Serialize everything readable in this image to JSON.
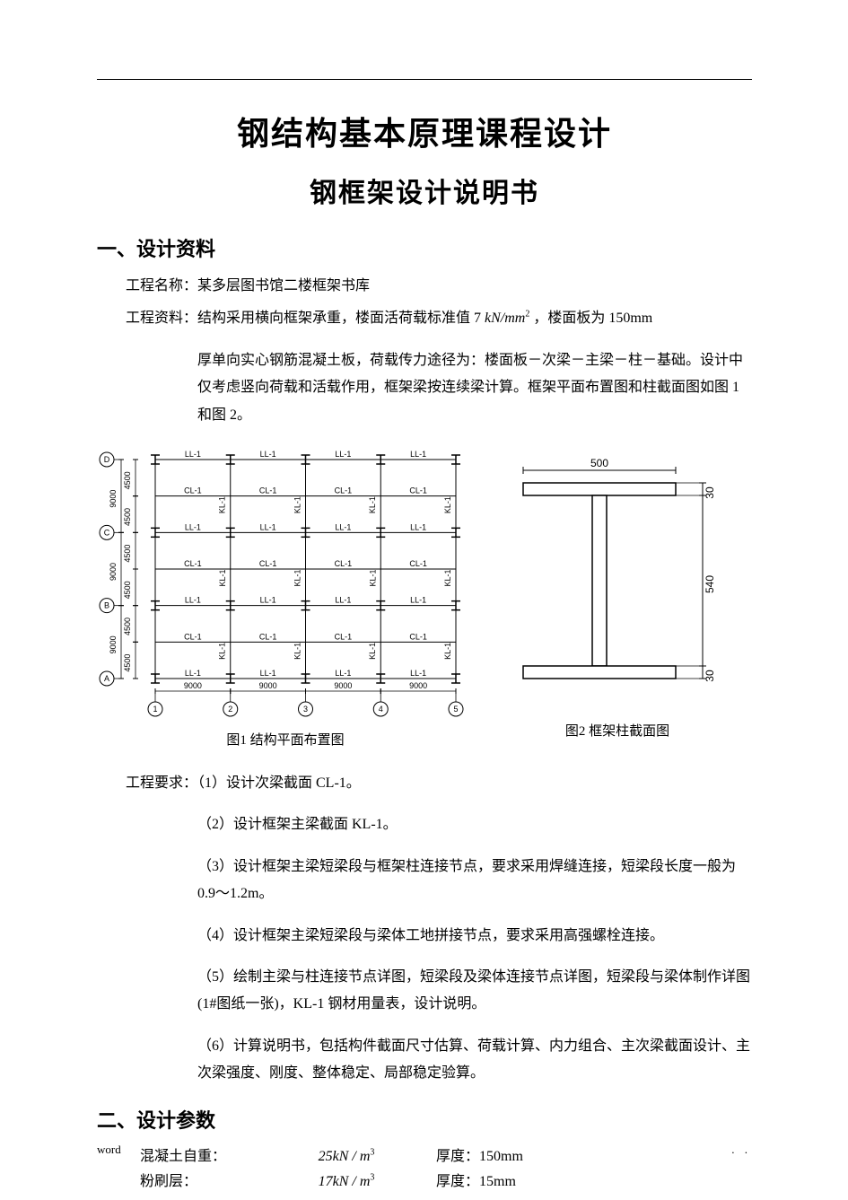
{
  "title1": "钢结构基本原理课程设计",
  "title2": "钢框架设计说明书",
  "section1_h": "一、设计资料",
  "line_projname": "工程名称：某多层图书馆二楼框架书库",
  "line_projinfo_prefix": "工程资料：结构采用横向框架承重，楼面活荷载标准值 7",
  "line_projinfo_unit": "kN/mm",
  "line_projinfo_suffix": " ，楼面板为 150mm",
  "block_projinfo": "厚单向实心钢筋混凝土板，荷载传力途径为：楼面板－次梁－主梁－柱－基础。设计中仅考虑竖向荷载和活载作用，框架梁按连续梁计算。框架平面布置图和柱截面图如图 1 和图 2。",
  "fig1": {
    "caption": "图1 结构平面布置图",
    "axis_labels": [
      "A",
      "B",
      "C",
      "D"
    ],
    "col_labels": [
      "1",
      "2",
      "3",
      "4",
      "5"
    ],
    "span_v_half": "4500",
    "span_v_full": "9000",
    "span_h": "9000",
    "beam_LL": "LL-1",
    "beam_CL": "CL-1",
    "beam_KL": "KL-1",
    "line_color": "#000000",
    "text_color": "#000000",
    "font_size": 9
  },
  "fig2": {
    "caption": "图2 框架柱截面图",
    "width_label": "500",
    "flange_label": "30",
    "web_label": "540",
    "line_color": "#000000",
    "fill_color": "#ffffff",
    "font_size": 12
  },
  "req_lead": "工程要求：（1）设计次梁截面 CL-1。",
  "req2": "（2）设计框架主梁截面 KL-1。",
  "req3": "（3）设计框架主梁短梁段与框架柱连接节点，要求采用焊缝连接，短梁段长度一般为 0.9～1.2m。",
  "req4": "（4）设计框架主梁短梁段与梁体工地拼接节点，要求采用高强螺栓连接。",
  "req5": "（5）绘制主梁与柱连接节点详图，短梁段及梁体连接节点详图，短梁段与梁体制作详图(1#图纸一张)，KL-1 钢材用量表，设计说明。",
  "req6": "（6）计算说明书，包括构件截面尺寸估算、荷载计算、内力组合、主次梁截面设计、主次梁强度、刚度、整体稳定、局部稳定验算。",
  "section2_h": "二、设计参数",
  "params": {
    "rows": [
      {
        "name": "混凝土自重：",
        "value": "25kN / m",
        "exp": "3",
        "thick": "厚度：150mm"
      },
      {
        "name": "粉刷层：",
        "value": "17kN / m",
        "exp": "3",
        "thick": "厚度：15mm"
      }
    ]
  },
  "footer_left": "word",
  "footer_right": ". ."
}
